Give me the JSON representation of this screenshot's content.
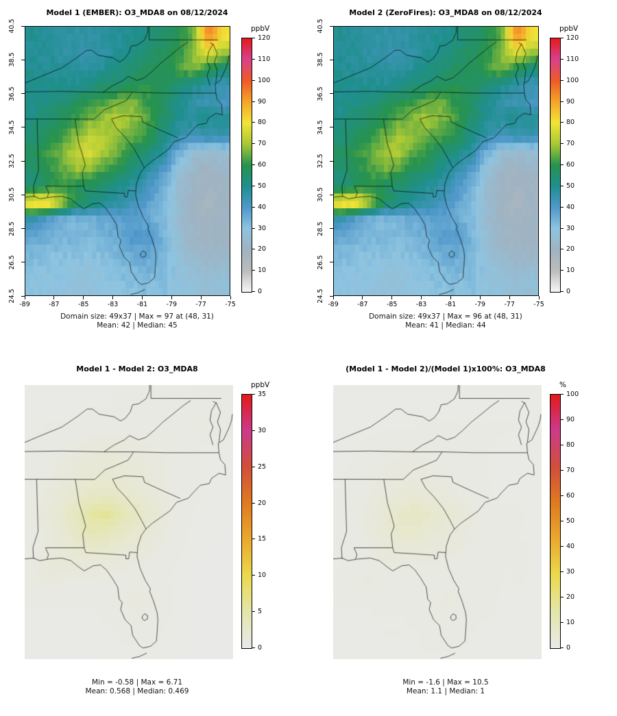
{
  "panels": [
    {
      "title": "Model 1 (EMBER): O3_MDA8 on 08/12/2024",
      "unit": "ppbV",
      "caption_line1": "Domain size: 49x37 | Max = 97 at (48, 31)",
      "caption_line2": "Mean: 42 | Median: 45"
    },
    {
      "title": "Model 2 (ZeroFires): O3_MDA8 on 08/12/2024",
      "unit": "ppbV",
      "caption_line1": "Domain size: 49x37 | Max = 96 at (48, 31)",
      "caption_line2": "Mean: 41 | Median: 44"
    },
    {
      "title": "Model 1 - Model 2: O3_MDA8",
      "unit": "ppbV",
      "caption_line1": "Min = -0.58 | Max = 6.71",
      "caption_line2": "Mean: 0.568 | Median: 0.469"
    },
    {
      "title": "(Model 1 - Model 2)/(Model 1)x100%: O3_MDA8",
      "unit": "%",
      "caption_line1": "Min = -1.6 | Max = 10.5",
      "caption_line2": "Mean: 1.1 | Median: 1"
    }
  ],
  "axes": {
    "x_tick_labels": [
      "-89",
      "-87",
      "-85",
      "-83",
      "-81",
      "-79",
      "-77",
      "-75"
    ],
    "x_tick_values": [
      -89,
      -87,
      -85,
      -83,
      -81,
      -79,
      -77,
      -75
    ],
    "y_tick_labels": [
      "24.5",
      "26.5",
      "28.5",
      "30.5",
      "32.5",
      "34.5",
      "36.5",
      "38.5",
      "40.5"
    ],
    "y_tick_values": [
      24.5,
      26.5,
      28.5,
      30.5,
      32.5,
      34.5,
      36.5,
      38.5,
      40.5
    ],
    "lon_range": [
      -89,
      -75
    ],
    "lat_range": [
      24.5,
      40.5
    ]
  },
  "chart_data": [
    {
      "type": "heatmap",
      "panel": "model1",
      "title": "Model 1 (EMBER): O3_MDA8 on 08/12/2024",
      "unit": "ppbV",
      "lon_range": [
        -89,
        -75
      ],
      "lat_range": [
        24.5,
        40.5
      ],
      "domain_size": "49x37",
      "stats": {
        "max": 97,
        "max_at": "(48, 31)",
        "mean": 42,
        "median": 45
      },
      "colorbar": {
        "min": 0,
        "max": 120,
        "ticks": [
          0,
          10,
          20,
          30,
          40,
          50,
          60,
          70,
          80,
          90,
          100,
          110,
          120
        ],
        "stops": [
          [
            0,
            "#f7f7f7"
          ],
          [
            10,
            "#bcbcbc"
          ],
          [
            20,
            "#9fb3c2"
          ],
          [
            30,
            "#8ec4e0"
          ],
          [
            40,
            "#4f98ca"
          ],
          [
            50,
            "#1f8f8f"
          ],
          [
            60,
            "#27934d"
          ],
          [
            70,
            "#a8c836"
          ],
          [
            80,
            "#f2e438"
          ],
          [
            90,
            "#f5a42a"
          ],
          [
            100,
            "#ee5a28"
          ],
          [
            110,
            "#d8418c"
          ],
          [
            120,
            "#e31a1c"
          ]
        ]
      },
      "grid": {
        "cols": 14,
        "rows": 16,
        "order": "north_to_south",
        "units": "ppbV",
        "values": [
          [
            50,
            48,
            47,
            46,
            46,
            47,
            49,
            50,
            53,
            56,
            58,
            65,
            95,
            82
          ],
          [
            49,
            48,
            47,
            46,
            46,
            47,
            50,
            52,
            55,
            58,
            60,
            68,
            80,
            70
          ],
          [
            50,
            49,
            48,
            47,
            47,
            49,
            52,
            55,
            57,
            58,
            62,
            68,
            60,
            54
          ],
          [
            51,
            51,
            50,
            50,
            52,
            54,
            56,
            58,
            60,
            58,
            54,
            50,
            46,
            44
          ],
          [
            50,
            52,
            54,
            57,
            60,
            63,
            67,
            66,
            60,
            56,
            50,
            46,
            44,
            42
          ],
          [
            52,
            55,
            58,
            62,
            66,
            70,
            72,
            68,
            63,
            56,
            50,
            48,
            50,
            48
          ],
          [
            54,
            58,
            62,
            68,
            73,
            71,
            67,
            64,
            60,
            52,
            46,
            44,
            46,
            45
          ],
          [
            57,
            61,
            66,
            73,
            76,
            70,
            64,
            58,
            54,
            47,
            35,
            26,
            24,
            26
          ],
          [
            55,
            60,
            64,
            69,
            67,
            62,
            57,
            52,
            46,
            40,
            28,
            22,
            20,
            22
          ],
          [
            53,
            58,
            61,
            59,
            57,
            54,
            51,
            47,
            41,
            35,
            25,
            20,
            18,
            20
          ],
          [
            82,
            86,
            72,
            58,
            53,
            49,
            46,
            43,
            38,
            33,
            24,
            20,
            18,
            20
          ],
          [
            45,
            38,
            34,
            33,
            34,
            36,
            37,
            38,
            36,
            32,
            24,
            20,
            19,
            20
          ],
          [
            36,
            35,
            34,
            33,
            33,
            34,
            37,
            40,
            40,
            34,
            26,
            22,
            20,
            21
          ],
          [
            33,
            32,
            31,
            31,
            31,
            32,
            34,
            36,
            37,
            33,
            27,
            23,
            21,
            22
          ],
          [
            31,
            30,
            30,
            29,
            29,
            30,
            32,
            33,
            34,
            32,
            29,
            26,
            24,
            25
          ],
          [
            30,
            29,
            29,
            28,
            28,
            29,
            30,
            31,
            32,
            31,
            29,
            27,
            26,
            27
          ]
        ]
      }
    },
    {
      "type": "heatmap",
      "panel": "model2",
      "title": "Model 2 (ZeroFires): O3_MDA8 on 08/12/2024",
      "unit": "ppbV",
      "lon_range": [
        -89,
        -75
      ],
      "lat_range": [
        24.5,
        40.5
      ],
      "domain_size": "49x37",
      "stats": {
        "max": 96,
        "max_at": "(48, 31)",
        "mean": 41,
        "median": 44
      },
      "colorbar": {
        "min": 0,
        "max": 120,
        "ticks": [
          0,
          10,
          20,
          30,
          40,
          50,
          60,
          70,
          80,
          90,
          100,
          110,
          120
        ],
        "stops": [
          [
            0,
            "#f7f7f7"
          ],
          [
            10,
            "#bcbcbc"
          ],
          [
            20,
            "#9fb3c2"
          ],
          [
            30,
            "#8ec4e0"
          ],
          [
            40,
            "#4f98ca"
          ],
          [
            50,
            "#1f8f8f"
          ],
          [
            60,
            "#27934d"
          ],
          [
            70,
            "#a8c836"
          ],
          [
            80,
            "#f2e438"
          ],
          [
            90,
            "#f5a42a"
          ],
          [
            100,
            "#ee5a28"
          ],
          [
            110,
            "#d8418c"
          ],
          [
            120,
            "#e31a1c"
          ]
        ]
      },
      "grid": {
        "derived": "model1.grid.values - diff.grid.values"
      }
    },
    {
      "type": "heatmap",
      "panel": "diff",
      "title": "Model 1 - Model 2: O3_MDA8",
      "unit": "ppbV",
      "lon_range": [
        -89,
        -75
      ],
      "lat_range": [
        24.5,
        40.5
      ],
      "stats": {
        "min": -0.58,
        "max": 6.71,
        "mean": 0.568,
        "median": 0.469
      },
      "colorbar": {
        "min": 0,
        "max": 35,
        "ticks": [
          0,
          5,
          10,
          15,
          20,
          25,
          30,
          35
        ],
        "stops": [
          [
            0,
            "#e9e9e9"
          ],
          [
            5,
            "#e4e6ac"
          ],
          [
            10,
            "#ebd94c"
          ],
          [
            15,
            "#eaa92e"
          ],
          [
            20,
            "#df7b20"
          ],
          [
            25,
            "#d14f3a"
          ],
          [
            30,
            "#cc3a8a"
          ],
          [
            35,
            "#e31a1c"
          ]
        ]
      },
      "grid": {
        "cols": 14,
        "rows": 16,
        "order": "north_to_south",
        "units": "ppbV",
        "values": [
          [
            0.3,
            0.3,
            0.3,
            0.3,
            0.3,
            0.3,
            0.4,
            0.4,
            0.4,
            0.4,
            0.4,
            0.5,
            0.6,
            0.5
          ],
          [
            0.3,
            0.3,
            0.3,
            0.3,
            0.4,
            0.4,
            0.5,
            0.5,
            0.5,
            0.5,
            0.5,
            0.6,
            0.7,
            0.5
          ],
          [
            0.3,
            0.4,
            0.4,
            0.4,
            0.5,
            0.5,
            0.6,
            0.6,
            0.6,
            0.6,
            0.7,
            0.8,
            0.6,
            0.4
          ],
          [
            0.4,
            0.5,
            0.6,
            0.8,
            1.0,
            1.2,
            1.0,
            0.9,
            0.8,
            0.7,
            0.6,
            0.4,
            0.3,
            0.3
          ],
          [
            0.4,
            0.6,
            0.9,
            1.2,
            1.5,
            1.6,
            1.4,
            1.2,
            1.0,
            0.8,
            0.5,
            0.4,
            0.3,
            0.3
          ],
          [
            0.5,
            0.8,
            1.1,
            1.5,
            1.8,
            2.0,
            1.8,
            1.5,
            1.2,
            0.8,
            0.5,
            0.4,
            0.3,
            0.3
          ],
          [
            0.6,
            1.0,
            1.5,
            2.2,
            3.0,
            3.2,
            2.6,
            2.0,
            1.4,
            0.9,
            0.5,
            0.4,
            0.3,
            0.3
          ],
          [
            0.7,
            1.2,
            2.0,
            3.5,
            5.5,
            6.3,
            4.5,
            3.0,
            2.0,
            1.0,
            0.5,
            0.3,
            0.3,
            0.2
          ],
          [
            0.6,
            1.0,
            1.8,
            3.0,
            4.5,
            4.0,
            3.0,
            2.2,
            1.4,
            0.8,
            0.4,
            0.3,
            0.2,
            0.2
          ],
          [
            0.6,
            0.9,
            1.4,
            2.0,
            2.4,
            2.2,
            1.8,
            1.4,
            1.0,
            0.6,
            0.4,
            0.3,
            0.2,
            0.2
          ],
          [
            0.8,
            1.2,
            1.4,
            1.4,
            1.2,
            1.0,
            0.9,
            0.8,
            0.7,
            0.5,
            0.3,
            0.2,
            0.2,
            0.2
          ],
          [
            0.7,
            0.9,
            0.8,
            0.7,
            0.6,
            0.6,
            0.6,
            0.7,
            0.6,
            0.4,
            0.3,
            0.2,
            0.2,
            0.2
          ],
          [
            0.4,
            0.4,
            0.4,
            0.4,
            0.4,
            0.5,
            0.8,
            1.0,
            0.9,
            0.5,
            0.3,
            0.2,
            0.2,
            0.2
          ],
          [
            0.3,
            0.3,
            0.3,
            0.3,
            0.3,
            0.4,
            0.6,
            0.8,
            0.7,
            0.4,
            0.3,
            0.2,
            0.2,
            0.2
          ],
          [
            0.3,
            0.3,
            0.3,
            0.3,
            0.3,
            0.3,
            0.4,
            0.5,
            0.5,
            0.3,
            0.2,
            0.2,
            0.2,
            0.2
          ],
          [
            0.2,
            0.2,
            0.2,
            0.2,
            0.2,
            0.3,
            0.3,
            0.3,
            0.3,
            0.3,
            0.2,
            0.2,
            0.2,
            0.2
          ]
        ]
      }
    },
    {
      "type": "heatmap",
      "panel": "pct_diff",
      "title": "(Model 1 - Model 2)/(Model 1)x100%: O3_MDA8",
      "unit": "%",
      "lon_range": [
        -89,
        -75
      ],
      "lat_range": [
        24.5,
        40.5
      ],
      "stats": {
        "min": -1.6,
        "max": 10.5,
        "mean": 1.1,
        "median": 1
      },
      "colorbar": {
        "min": 0,
        "max": 100,
        "ticks": [
          0,
          10,
          20,
          30,
          40,
          50,
          60,
          70,
          80,
          90,
          100
        ],
        "stops": [
          [
            0,
            "#e9e9e9"
          ],
          [
            14,
            "#e4e6ac"
          ],
          [
            29,
            "#ebd94c"
          ],
          [
            43,
            "#eaa92e"
          ],
          [
            57,
            "#df7b20"
          ],
          [
            71,
            "#d14f3a"
          ],
          [
            86,
            "#cc3a8a"
          ],
          [
            100,
            "#e31a1c"
          ]
        ]
      },
      "grid": {
        "derived": "diff.grid.values / model1.grid.values * 100"
      }
    }
  ]
}
